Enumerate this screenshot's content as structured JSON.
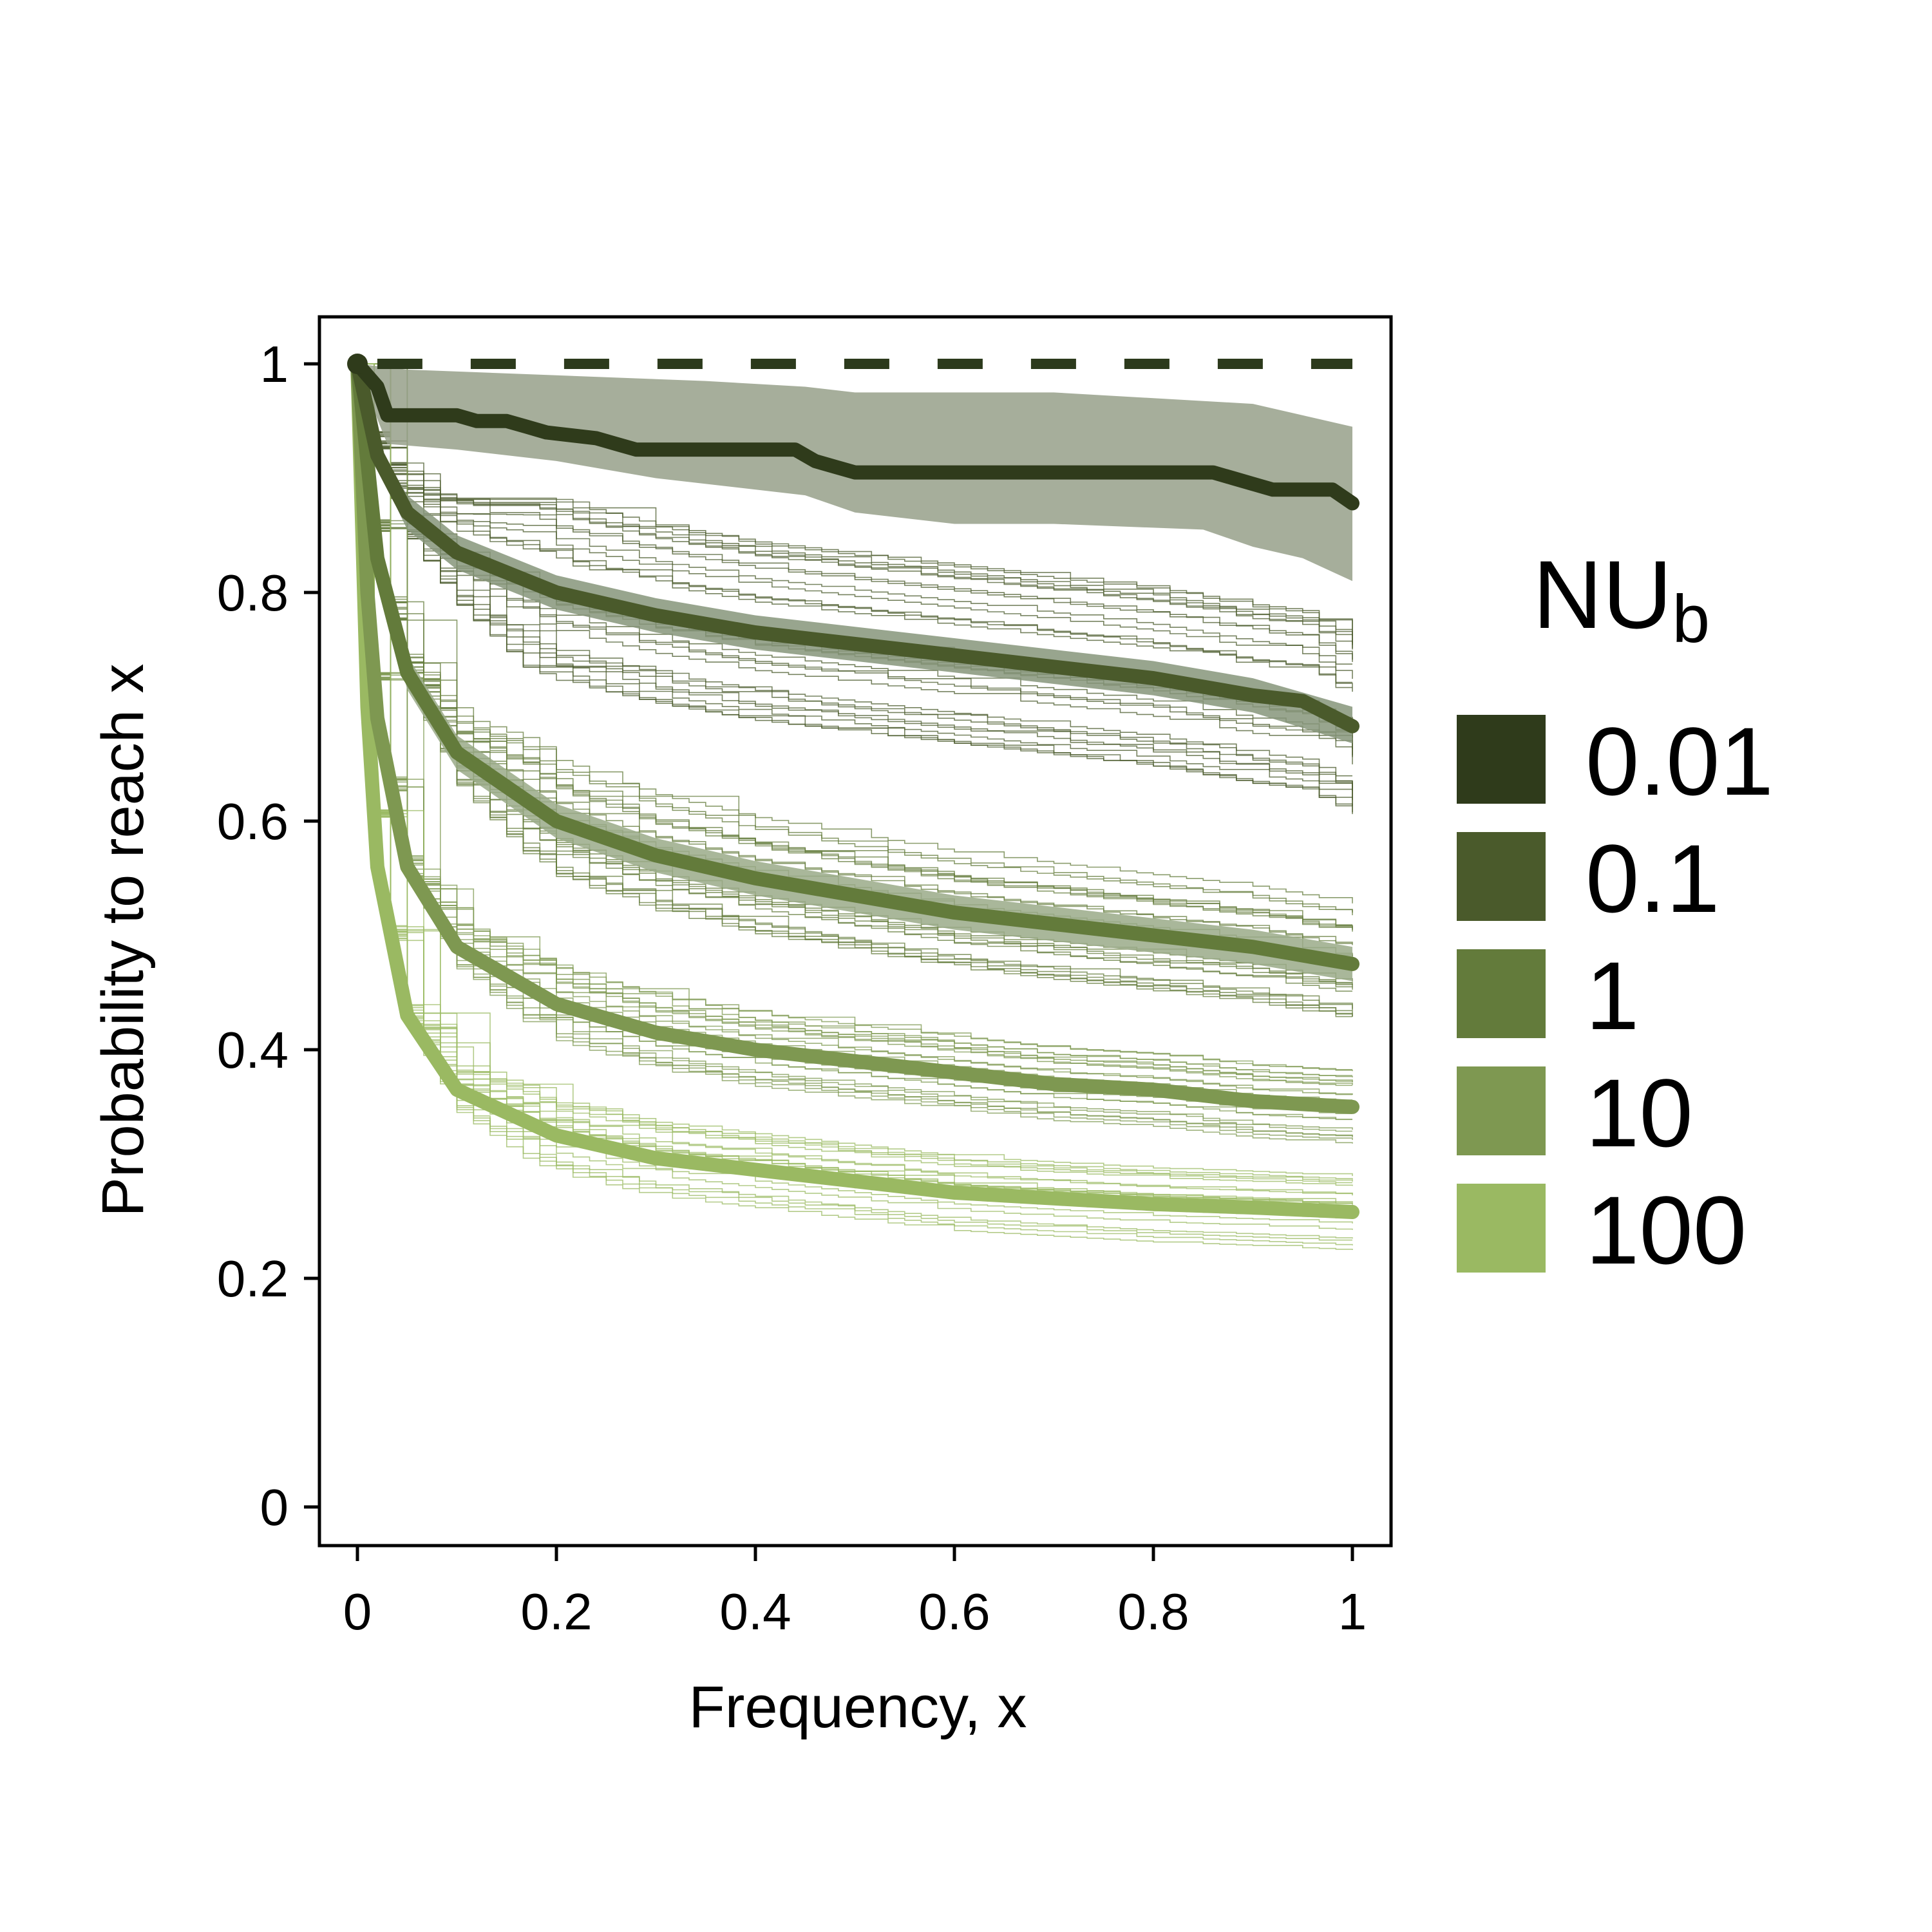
{
  "chart_data": {
    "type": "line",
    "xlabel": "Frequency, x",
    "ylabel": "Probability to reach x",
    "xlim": [
      0,
      1
    ],
    "ylim": [
      0,
      1
    ],
    "x_ticks": [
      "0",
      "0.2",
      "0.4",
      "0.6",
      "0.8",
      "1"
    ],
    "x_tick_values": [
      0,
      0.2,
      0.4,
      0.6,
      0.8,
      1
    ],
    "y_ticks": [
      "0",
      "0.2",
      "0.4",
      "0.6",
      "0.8",
      "1"
    ],
    "y_tick_values": [
      0,
      0.2,
      0.4,
      0.6,
      0.8,
      1
    ],
    "grid": false,
    "legend": {
      "title_main": "NU",
      "title_sub": "b",
      "position": "right"
    },
    "reference_line": {
      "y": 1,
      "style": "dashed",
      "color": "#2c3a1c"
    },
    "series": [
      {
        "name": "0.01",
        "color": "#2f3b1b",
        "band_color": "#96a08a",
        "points": [
          [
            0,
            1
          ],
          [
            0.02,
            0.98
          ],
          [
            0.03,
            0.955
          ],
          [
            0.1,
            0.955
          ],
          [
            0.12,
            0.95
          ],
          [
            0.15,
            0.95
          ],
          [
            0.17,
            0.945
          ],
          [
            0.19,
            0.94
          ],
          [
            0.24,
            0.935
          ],
          [
            0.26,
            0.93
          ],
          [
            0.28,
            0.925
          ],
          [
            0.44,
            0.925
          ],
          [
            0.46,
            0.915
          ],
          [
            0.48,
            0.91
          ],
          [
            0.5,
            0.905
          ],
          [
            0.86,
            0.905
          ],
          [
            0.88,
            0.9
          ],
          [
            0.9,
            0.895
          ],
          [
            0.92,
            0.89
          ],
          [
            0.98,
            0.89
          ],
          [
            1,
            0.878
          ]
        ],
        "band_upper": [
          [
            0,
            1
          ],
          [
            0.05,
            0.995
          ],
          [
            0.2,
            0.99
          ],
          [
            0.35,
            0.985
          ],
          [
            0.45,
            0.98
          ],
          [
            0.5,
            0.975
          ],
          [
            0.7,
            0.975
          ],
          [
            0.8,
            0.97
          ],
          [
            0.9,
            0.965
          ],
          [
            0.95,
            0.955
          ],
          [
            1,
            0.945
          ]
        ],
        "band_lower": [
          [
            0,
            0.995
          ],
          [
            0.03,
            0.93
          ],
          [
            0.1,
            0.925
          ],
          [
            0.2,
            0.915
          ],
          [
            0.3,
            0.9
          ],
          [
            0.45,
            0.885
          ],
          [
            0.5,
            0.87
          ],
          [
            0.6,
            0.86
          ],
          [
            0.7,
            0.86
          ],
          [
            0.85,
            0.855
          ],
          [
            0.9,
            0.84
          ],
          [
            0.95,
            0.83
          ],
          [
            1,
            0.81
          ]
        ],
        "replicates": 0
      },
      {
        "name": "0.1",
        "color": "#4a5a2b",
        "band_color": "#86957a",
        "points": [
          [
            0,
            1
          ],
          [
            0.02,
            0.92
          ],
          [
            0.05,
            0.87
          ],
          [
            0.1,
            0.835
          ],
          [
            0.2,
            0.8
          ],
          [
            0.3,
            0.78
          ],
          [
            0.4,
            0.765
          ],
          [
            0.5,
            0.755
          ],
          [
            0.6,
            0.745
          ],
          [
            0.7,
            0.735
          ],
          [
            0.8,
            0.725
          ],
          [
            0.9,
            0.71
          ],
          [
            0.95,
            0.705
          ],
          [
            1,
            0.683
          ]
        ],
        "band_upper": [
          [
            0,
            1
          ],
          [
            0.02,
            0.93
          ],
          [
            0.05,
            0.885
          ],
          [
            0.1,
            0.85
          ],
          [
            0.2,
            0.815
          ],
          [
            0.3,
            0.795
          ],
          [
            0.4,
            0.78
          ],
          [
            0.5,
            0.77
          ],
          [
            0.6,
            0.76
          ],
          [
            0.7,
            0.75
          ],
          [
            0.8,
            0.74
          ],
          [
            0.9,
            0.725
          ],
          [
            1,
            0.7
          ]
        ],
        "band_lower": [
          [
            0,
            1
          ],
          [
            0.02,
            0.91
          ],
          [
            0.05,
            0.855
          ],
          [
            0.1,
            0.82
          ],
          [
            0.2,
            0.785
          ],
          [
            0.3,
            0.765
          ],
          [
            0.4,
            0.75
          ],
          [
            0.5,
            0.74
          ],
          [
            0.6,
            0.73
          ],
          [
            0.7,
            0.72
          ],
          [
            0.8,
            0.71
          ],
          [
            0.9,
            0.695
          ],
          [
            1,
            0.668
          ]
        ],
        "replicates": 30
      },
      {
        "name": "1",
        "color": "#637b3b",
        "band_color": "#9aaa88",
        "points": [
          [
            0,
            1
          ],
          [
            0.02,
            0.83
          ],
          [
            0.05,
            0.73
          ],
          [
            0.1,
            0.66
          ],
          [
            0.2,
            0.6
          ],
          [
            0.3,
            0.57
          ],
          [
            0.4,
            0.55
          ],
          [
            0.5,
            0.535
          ],
          [
            0.6,
            0.52
          ],
          [
            0.7,
            0.51
          ],
          [
            0.8,
            0.5
          ],
          [
            0.9,
            0.49
          ],
          [
            1,
            0.475
          ]
        ],
        "band_upper": [
          [
            0,
            1
          ],
          [
            0.02,
            0.845
          ],
          [
            0.05,
            0.745
          ],
          [
            0.1,
            0.675
          ],
          [
            0.2,
            0.615
          ],
          [
            0.3,
            0.585
          ],
          [
            0.4,
            0.565
          ],
          [
            0.5,
            0.55
          ],
          [
            0.6,
            0.535
          ],
          [
            0.7,
            0.525
          ],
          [
            0.8,
            0.515
          ],
          [
            0.9,
            0.505
          ],
          [
            1,
            0.49
          ]
        ],
        "band_lower": [
          [
            0,
            1
          ],
          [
            0.02,
            0.815
          ],
          [
            0.05,
            0.715
          ],
          [
            0.1,
            0.645
          ],
          [
            0.2,
            0.585
          ],
          [
            0.3,
            0.555
          ],
          [
            0.4,
            0.535
          ],
          [
            0.5,
            0.52
          ],
          [
            0.6,
            0.505
          ],
          [
            0.7,
            0.495
          ],
          [
            0.8,
            0.485
          ],
          [
            0.9,
            0.475
          ],
          [
            1,
            0.46
          ]
        ],
        "replicates": 25
      },
      {
        "name": "10",
        "color": "#7e9851",
        "band_color": "#b3c29f",
        "points": [
          [
            0,
            1
          ],
          [
            0.01,
            0.8
          ],
          [
            0.02,
            0.69
          ],
          [
            0.05,
            0.56
          ],
          [
            0.1,
            0.49
          ],
          [
            0.2,
            0.44
          ],
          [
            0.3,
            0.415
          ],
          [
            0.4,
            0.4
          ],
          [
            0.5,
            0.39
          ],
          [
            0.6,
            0.38
          ],
          [
            0.7,
            0.37
          ],
          [
            0.8,
            0.365
          ],
          [
            0.9,
            0.355
          ],
          [
            1,
            0.35
          ]
        ],
        "band_upper": [
          [
            0,
            1
          ],
          [
            0.01,
            0.805
          ],
          [
            0.02,
            0.695
          ],
          [
            0.05,
            0.565
          ],
          [
            0.1,
            0.495
          ],
          [
            0.2,
            0.445
          ],
          [
            0.3,
            0.42
          ],
          [
            0.4,
            0.405
          ],
          [
            0.5,
            0.395
          ],
          [
            0.6,
            0.385
          ],
          [
            0.7,
            0.375
          ],
          [
            0.8,
            0.37
          ],
          [
            0.9,
            0.36
          ],
          [
            1,
            0.355
          ]
        ],
        "band_lower": [
          [
            0,
            1
          ],
          [
            0.01,
            0.795
          ],
          [
            0.02,
            0.685
          ],
          [
            0.05,
            0.555
          ],
          [
            0.1,
            0.485
          ],
          [
            0.2,
            0.435
          ],
          [
            0.3,
            0.41
          ],
          [
            0.4,
            0.395
          ],
          [
            0.5,
            0.385
          ],
          [
            0.6,
            0.375
          ],
          [
            0.7,
            0.365
          ],
          [
            0.8,
            0.36
          ],
          [
            0.9,
            0.35
          ],
          [
            1,
            0.345
          ]
        ],
        "replicates": 20
      },
      {
        "name": "100",
        "color": "#9ab962",
        "band_color": "#c8d8ad",
        "points": [
          [
            0,
            1
          ],
          [
            0.01,
            0.7
          ],
          [
            0.02,
            0.56
          ],
          [
            0.05,
            0.43
          ],
          [
            0.1,
            0.365
          ],
          [
            0.2,
            0.325
          ],
          [
            0.3,
            0.305
          ],
          [
            0.4,
            0.295
          ],
          [
            0.5,
            0.285
          ],
          [
            0.6,
            0.275
          ],
          [
            0.7,
            0.27
          ],
          [
            0.8,
            0.265
          ],
          [
            0.9,
            0.262
          ],
          [
            1,
            0.258
          ]
        ],
        "band_upper": [
          [
            0,
            1
          ],
          [
            0.01,
            0.705
          ],
          [
            0.02,
            0.565
          ],
          [
            0.05,
            0.435
          ],
          [
            0.1,
            0.37
          ],
          [
            0.2,
            0.33
          ],
          [
            0.3,
            0.31
          ],
          [
            0.4,
            0.3
          ],
          [
            0.5,
            0.29
          ],
          [
            0.6,
            0.28
          ],
          [
            0.7,
            0.275
          ],
          [
            0.8,
            0.27
          ],
          [
            0.9,
            0.267
          ],
          [
            1,
            0.263
          ]
        ],
        "band_lower": [
          [
            0,
            1
          ],
          [
            0.01,
            0.695
          ],
          [
            0.02,
            0.555
          ],
          [
            0.05,
            0.425
          ],
          [
            0.1,
            0.36
          ],
          [
            0.2,
            0.32
          ],
          [
            0.3,
            0.3
          ],
          [
            0.4,
            0.29
          ],
          [
            0.5,
            0.28
          ],
          [
            0.6,
            0.27
          ],
          [
            0.7,
            0.265
          ],
          [
            0.8,
            0.26
          ],
          [
            0.9,
            0.257
          ],
          [
            1,
            0.253
          ]
        ],
        "replicates": 20
      }
    ]
  }
}
